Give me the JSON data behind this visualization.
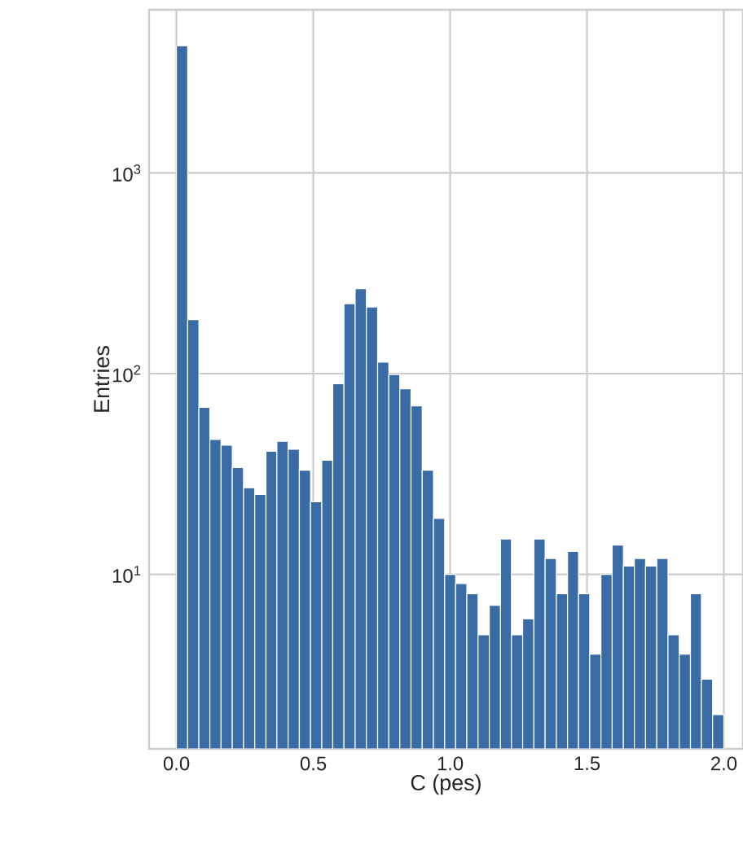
{
  "chart_data": {
    "type": "histogram",
    "xlabel": "C (pes)",
    "ylabel": "Entries",
    "color": "#3a6ba5",
    "bins": [
      0,
      0.041,
      0.082,
      0.122,
      0.163,
      0.204,
      0.245,
      0.286,
      0.327,
      0.367,
      0.408,
      0.449,
      0.49,
      0.531,
      0.571,
      0.612,
      0.653,
      0.694,
      0.735,
      0.776,
      0.816,
      0.857,
      0.898,
      0.939,
      0.98,
      1.02,
      1.061,
      1.102,
      1.143,
      1.184,
      1.224,
      1.265,
      1.306,
      1.347,
      1.388,
      1.429,
      1.469,
      1.51,
      1.551,
      1.592,
      1.633,
      1.673,
      1.714,
      1.755,
      1.796,
      1.837,
      1.878,
      1.918,
      1.959,
      2.0
    ],
    "values": [
      4300,
      186,
      68,
      47,
      44,
      34,
      27,
      25,
      41,
      46,
      42,
      33,
      23,
      37,
      89,
      223,
      265,
      215,
      114,
      99,
      84,
      69,
      33,
      19,
      10,
      9,
      8,
      5,
      7,
      15,
      5,
      6,
      15,
      12,
      8,
      13,
      8,
      4,
      10,
      14,
      11,
      12,
      11,
      12,
      5,
      4,
      8,
      3,
      2
    ],
    "xlim": [
      -0.1,
      2.07
    ],
    "ylim": [
      1.35,
      6500
    ],
    "log": "y",
    "grid": true,
    "xticks": [
      {
        "value": 0,
        "label": "0.0"
      },
      {
        "value": 0.5,
        "label": "0.5"
      },
      {
        "value": 1,
        "label": "1.0"
      },
      {
        "value": 1.5,
        "label": "1.5"
      },
      {
        "value": 2,
        "label": "2.0"
      }
    ],
    "yticks": [
      {
        "value": 10,
        "label": "10$^{1}$"
      },
      {
        "value": 100,
        "label": "10$^{2}$"
      },
      {
        "value": 1000,
        "label": "10$^{3}$"
      }
    ]
  }
}
